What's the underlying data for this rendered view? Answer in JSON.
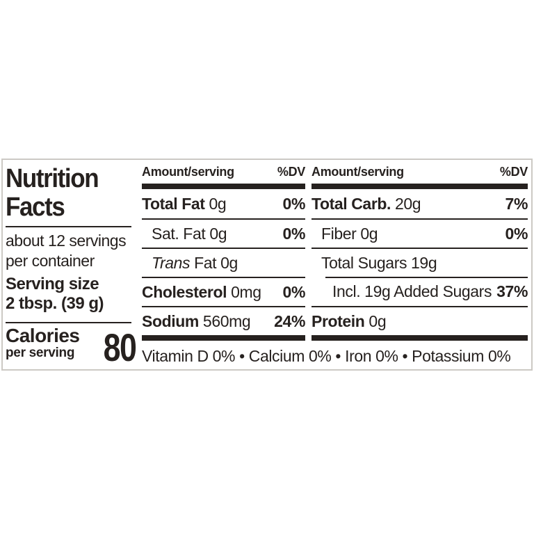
{
  "nutrition_label": {
    "title": {
      "line1": "Nutrition",
      "line2": "Facts"
    },
    "servings": {
      "line1": "about 12 servings",
      "line2": "per container"
    },
    "serving_size": {
      "label": "Serving size",
      "value": "2 tbsp. (39 g)"
    },
    "calories": {
      "label": "Calories",
      "sublabel": "per serving",
      "value": "80"
    },
    "column_header": {
      "amount": "Amount/serving",
      "dv": "%DV"
    },
    "columns": [
      {
        "rows": [
          {
            "bold": "Total Fat ",
            "italic": "",
            "regular": "0g",
            "dv": "0%"
          },
          {
            "bold": "",
            "italic": "",
            "regular": "Sat. Fat 0g",
            "dv": "0%"
          },
          {
            "bold": "",
            "italic": "Trans",
            "regular": " Fat 0g",
            "dv": ""
          },
          {
            "bold": "Cholesterol ",
            "italic": "",
            "regular": "0mg",
            "dv": "0%"
          },
          {
            "bold": "Sodium ",
            "italic": "",
            "regular": "560mg",
            "dv": "24%"
          }
        ]
      },
      {
        "rows": [
          {
            "bold": "Total Carb. ",
            "italic": "",
            "regular": "20g",
            "dv": "7%"
          },
          {
            "bold": "",
            "italic": "",
            "regular": "Fiber 0g",
            "dv": "0%"
          },
          {
            "bold": "",
            "italic": "",
            "regular": "Total Sugars 19g",
            "dv": ""
          },
          {
            "bold": "",
            "italic": "",
            "regular": "Incl. 19g Added Sugars",
            "dv": "37%"
          },
          {
            "bold": "Protein ",
            "italic": "",
            "regular": "0g",
            "dv": ""
          }
        ]
      }
    ],
    "micronutrients": "Vitamin D 0% • Calcium 0% • Iron 0% • Potassium 0%",
    "colors": {
      "text": "#26211f",
      "divider": "#26211f",
      "border": "#ccc9c4",
      "background": "#ffffff"
    }
  }
}
